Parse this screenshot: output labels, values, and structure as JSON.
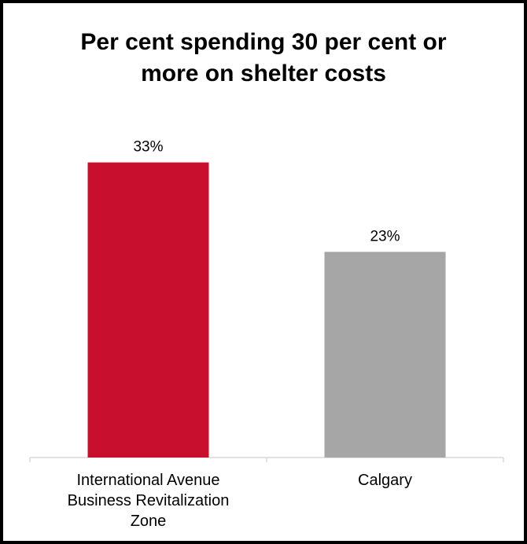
{
  "chart_data": {
    "type": "bar",
    "title_lines": [
      "Per cent spending 30 per cent or",
      "more on shelter costs"
    ],
    "categories": [
      [
        "International Avenue",
        "Business Revitalization",
        "Zone"
      ],
      [
        "Calgary"
      ]
    ],
    "values": [
      33,
      23
    ],
    "value_labels": [
      "33%",
      "23%"
    ],
    "colors": [
      "#c8102e",
      "#a6a6a6"
    ],
    "ylim": [
      0,
      40
    ],
    "grid": false,
    "legend": "none"
  }
}
